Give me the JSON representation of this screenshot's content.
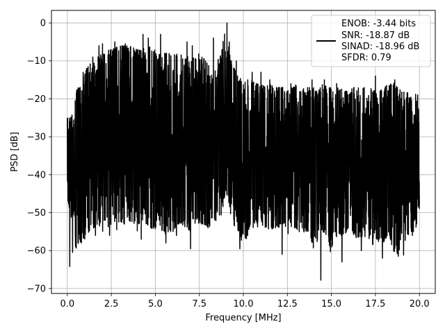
{
  "chart_data": {
    "type": "line",
    "xlabel": "Frequency [MHz]",
    "ylabel": "PSD [dB]",
    "xlim": [
      -0.9,
      20.9
    ],
    "ylim": [
      -71.3,
      3.3
    ],
    "xticks": [
      0.0,
      2.5,
      5.0,
      7.5,
      10.0,
      12.5,
      15.0,
      17.5,
      20.0
    ],
    "xtick_labels": [
      "0.0",
      "2.5",
      "5.0",
      "7.5",
      "10.0",
      "12.5",
      "15.0",
      "17.5",
      "20.0"
    ],
    "yticks": [
      0,
      -10,
      -20,
      -30,
      -40,
      -50,
      -60,
      -70
    ],
    "ytick_labels": [
      "0",
      "−10",
      "−20",
      "−30",
      "−40",
      "−50",
      "−60",
      "−70"
    ],
    "grid": true,
    "legend": {
      "placement": "top-right",
      "entries": [
        "ENOB: -3.44 bits",
        "SNR: -18.87 dB",
        "SINAD: -18.96 dB",
        "SFDR: 0.79"
      ]
    },
    "line_color": "#000000",
    "series": [
      {
        "envelope_x": [
          0.0,
          0.25,
          0.5,
          0.75,
          1.0,
          1.25,
          1.5,
          1.75,
          2.0,
          2.25,
          2.5,
          2.75,
          3.0,
          3.25,
          3.5,
          3.75,
          4.0,
          4.25,
          4.5,
          4.75,
          5.0,
          5.25,
          5.5,
          5.75,
          6.0,
          6.25,
          6.5,
          6.75,
          7.0,
          7.25,
          7.5,
          7.75,
          8.0,
          8.25,
          8.5,
          8.75,
          9.0,
          9.25,
          9.5,
          9.75,
          10.0,
          10.25,
          10.5,
          10.75,
          11.0,
          11.25,
          11.5,
          11.75,
          12.0,
          12.25,
          12.5,
          12.75,
          13.0,
          13.25,
          13.5,
          13.75,
          14.0,
          14.25,
          14.5,
          14.75,
          15.0,
          15.25,
          15.5,
          15.75,
          16.0,
          16.25,
          16.5,
          16.75,
          17.0,
          17.25,
          17.5,
          17.75,
          18.0,
          18.25,
          18.5,
          18.75,
          19.0,
          19.25,
          19.5,
          19.75,
          20.0
        ],
        "upper": [
          -25,
          -24,
          -18,
          -16,
          -13,
          -11,
          -10,
          -9,
          -8,
          -7,
          -7,
          -6.5,
          -6,
          -6,
          -6,
          -6.5,
          -7,
          -7,
          -6,
          -6.5,
          -7,
          -7.5,
          -8,
          -8,
          -8.5,
          -8,
          -8,
          -8.5,
          -9,
          -9,
          -8,
          -9,
          -11,
          -11,
          -10,
          -8,
          0,
          -9,
          -12,
          -14,
          -16,
          -15,
          -15,
          -16,
          -16,
          -17,
          -16,
          -17,
          -17,
          -17,
          -18,
          -17,
          -16,
          -18,
          -17,
          -17,
          -17,
          -18,
          -16,
          -17,
          -17,
          -16,
          -17,
          -18,
          -18,
          -17,
          -17,
          -17,
          -17,
          -17,
          -18,
          -18,
          -17,
          -16,
          -15.5,
          -17,
          -18,
          -18,
          -19,
          -18,
          -24
        ],
        "lower": [
          -46,
          -52,
          -60,
          -58,
          -57,
          -55,
          -54,
          -53,
          -55,
          -54,
          -53,
          -55,
          -54,
          -53,
          -52,
          -53,
          -55,
          -52,
          -53,
          -54,
          -55,
          -54,
          -56,
          -55,
          -55,
          -53,
          -53,
          -54,
          -55,
          -53,
          -53,
          -53,
          -54,
          -53,
          -52,
          -51,
          -44,
          -50,
          -54,
          -55,
          -59,
          -56,
          -54,
          -54,
          -53,
          -54,
          -55,
          -54,
          -54,
          -53,
          -57,
          -54,
          -54,
          -56,
          -55,
          -55,
          -60,
          -57,
          -55,
          -56,
          -62,
          -57,
          -56,
          -56,
          -54,
          -56,
          -57,
          -57,
          -56,
          -58,
          -59,
          -57,
          -58,
          -55,
          -60,
          -61,
          -59,
          -57,
          -55,
          -55,
          -50
        ],
        "minima": [
          [
            0.14,
            -64.2
          ],
          [
            0.3,
            -60.5
          ],
          [
            0.47,
            -59
          ],
          [
            0.8,
            -58
          ],
          [
            1.6,
            -56
          ],
          [
            2.4,
            -56
          ],
          [
            4.2,
            -57
          ],
          [
            4.6,
            -53
          ],
          [
            5.6,
            -58
          ],
          [
            6.2,
            -56
          ],
          [
            7.0,
            -59.5
          ],
          [
            9.8,
            -59.5
          ],
          [
            12.2,
            -61
          ],
          [
            14.4,
            -67.8
          ],
          [
            15.6,
            -63
          ],
          [
            16.7,
            -60
          ],
          [
            17.9,
            -62
          ],
          [
            18.8,
            -61.5
          ],
          [
            19.1,
            -61.2
          ],
          [
            19.6,
            -56
          ],
          [
            20.0,
            -49
          ]
        ],
        "maxima": [
          [
            0.73,
            -17
          ],
          [
            0.9,
            -13
          ],
          [
            1.1,
            -12
          ],
          [
            1.45,
            -9
          ],
          [
            1.8,
            -6
          ],
          [
            2.0,
            -5.5
          ],
          [
            2.7,
            -5
          ],
          [
            3.3,
            -5.5
          ],
          [
            4.3,
            -3
          ],
          [
            4.6,
            -4
          ],
          [
            5.3,
            -3
          ],
          [
            6.8,
            -5
          ],
          [
            7.1,
            -6
          ],
          [
            8.3,
            -4
          ],
          [
            8.8,
            -7
          ],
          [
            9.07,
            0
          ],
          [
            9.2,
            -5
          ],
          [
            9.6,
            -10
          ],
          [
            10.5,
            -13
          ],
          [
            11.0,
            -13
          ],
          [
            11.5,
            -15
          ],
          [
            12.7,
            -16
          ],
          [
            13.9,
            -15
          ],
          [
            14.6,
            -15
          ],
          [
            15.3,
            -16
          ],
          [
            17.5,
            -14
          ],
          [
            18.6,
            -15
          ],
          [
            19.9,
            -19
          ]
        ],
        "seed": 9431
      }
    ]
  }
}
